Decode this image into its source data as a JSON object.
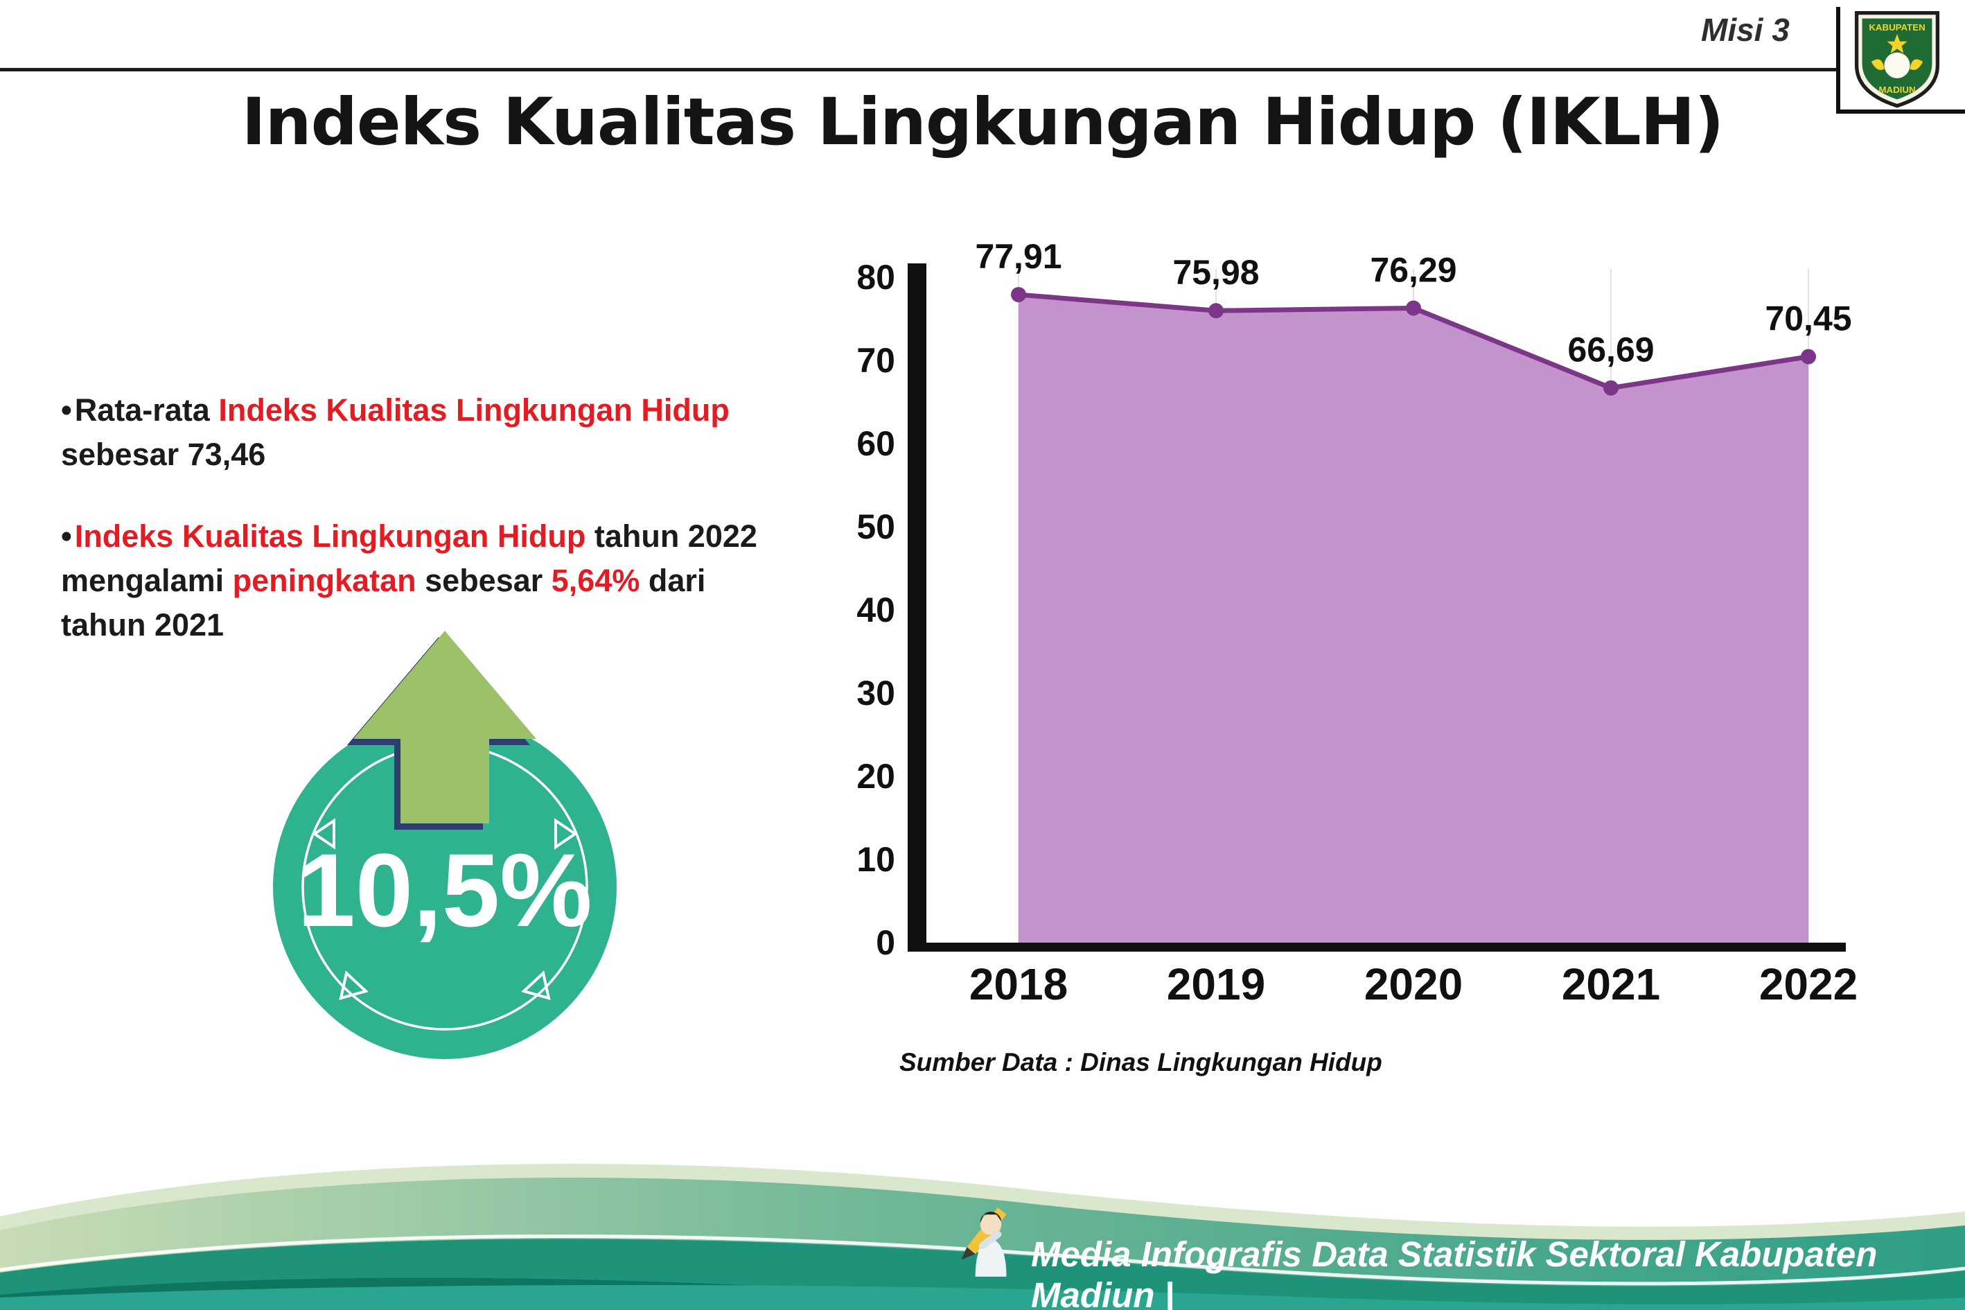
{
  "header": {
    "misi_label": "Misi 3",
    "title": "Indeks Kualitas Lingkungan Hidup (IKLH)"
  },
  "logo": {
    "line1": "KABUPATEN",
    "line2": "MADIUN"
  },
  "bullets": [
    {
      "segments": [
        {
          "t": "Rata-rata ",
          "c": "dark"
        },
        {
          "t": "Indeks Kualitas Lingkungan Hidup",
          "c": "red"
        },
        {
          "t": " sebesar 73,46",
          "c": "dark"
        }
      ]
    },
    {
      "segments": [
        {
          "t": "Indeks Kualitas Lingkungan Hidup",
          "c": "red"
        },
        {
          "t": " tahun 2022 mengalami ",
          "c": "dark"
        },
        {
          "t": "peningkatan",
          "c": "red"
        },
        {
          "t": " sebesar ",
          "c": "dark"
        },
        {
          "t": "5,64%",
          "c": "red"
        },
        {
          "t": " dari tahun 2021",
          "c": "dark"
        }
      ]
    }
  ],
  "highlight": {
    "percent_label": "10,5%",
    "circle_color": "#2eb28f",
    "arrow_color": "#9cc168",
    "arrow_outline_color": "#2b3e6d"
  },
  "chart_data": {
    "type": "area",
    "title": "",
    "categories": [
      "2018",
      "2019",
      "2020",
      "2021",
      "2022"
    ],
    "values": [
      77.91,
      75.98,
      76.29,
      66.69,
      70.45
    ],
    "value_labels": [
      "77,91",
      "75,98",
      "76,29",
      "66,69",
      "70,45"
    ],
    "xlabel": "",
    "ylabel": "",
    "ylim": [
      0,
      80
    ],
    "ytick_step": 10,
    "yticks": [
      "0",
      "10",
      "20",
      "30",
      "40",
      "50",
      "60",
      "70",
      "80"
    ],
    "grid": "faint-vertical",
    "legend": "none",
    "fill_color": "#c493ce",
    "line_color": "#7b3687",
    "source_label": "Sumber Data : Dinas Lingkungan Hidup"
  },
  "footer": {
    "credit": "Media Infografis Data Statistik Sektoral Kabupaten Madiun |"
  }
}
